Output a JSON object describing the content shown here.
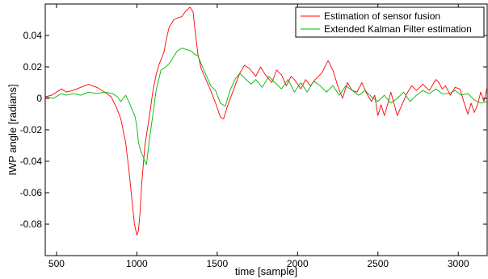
{
  "chart_data": {
    "type": "line",
    "title": "",
    "xlabel": "time [sample]",
    "ylabel": "IWP angle  [radians]",
    "xlim": [
      430,
      3180
    ],
    "ylim": [
      -0.1,
      0.06
    ],
    "xticks": [
      500,
      1000,
      1500,
      2000,
      2500,
      3000
    ],
    "yticks": [
      -0.08,
      -0.06,
      -0.04,
      -0.02,
      0,
      0.02,
      0.04
    ],
    "ytick_labels": [
      "-0.08",
      "-0.06",
      "-0.04",
      "-0.02",
      "0",
      "0.02",
      "0.04"
    ],
    "grid": false,
    "legend_position": "top-right",
    "series": [
      {
        "name": "Estimation of sensor fusion",
        "color": "#ff0000",
        "x": [
          430,
          470,
          530,
          560,
          600,
          650,
          700,
          750,
          800,
          840,
          870,
          900,
          930,
          950,
          970,
          985,
          1000,
          1010,
          1020,
          1030,
          1050,
          1080,
          1100,
          1120,
          1140,
          1160,
          1170,
          1180,
          1200,
          1230,
          1250,
          1280,
          1300,
          1330,
          1350,
          1360,
          1380,
          1400,
          1430,
          1460,
          1490,
          1520,
          1540,
          1560,
          1600,
          1640,
          1670,
          1700,
          1740,
          1770,
          1800,
          1840,
          1870,
          1900,
          1930,
          1960,
          1980,
          2000,
          2020,
          2050,
          2080,
          2110,
          2150,
          2190,
          2220,
          2250,
          2280,
          2310,
          2340,
          2370,
          2400,
          2430,
          2460,
          2480,
          2500,
          2520,
          2540,
          2560,
          2580,
          2600,
          2620,
          2650,
          2680,
          2710,
          2740,
          2780,
          2820,
          2860,
          2880,
          2900,
          2920,
          2950,
          2980,
          3010,
          3040,
          3060,
          3080,
          3100,
          3120,
          3140,
          3160,
          3180
        ],
        "y": [
          0.001,
          0.002,
          0.006,
          0.004,
          0.005,
          0.007,
          0.009,
          0.007,
          0.004,
          0.001,
          -0.005,
          -0.013,
          -0.028,
          -0.045,
          -0.065,
          -0.08,
          -0.087,
          -0.084,
          -0.072,
          -0.055,
          -0.03,
          -0.01,
          0.005,
          0.015,
          0.022,
          0.027,
          0.03,
          0.036,
          0.045,
          0.05,
          0.051,
          0.052,
          0.055,
          0.058,
          0.055,
          0.045,
          0.028,
          0.019,
          0.012,
          0.005,
          -0.003,
          -0.012,
          -0.013,
          -0.006,
          0.005,
          0.016,
          0.021,
          0.019,
          0.014,
          0.02,
          0.015,
          0.01,
          0.018,
          0.015,
          0.008,
          0.014,
          0.012,
          0.009,
          0.006,
          0.012,
          0.008,
          0.012,
          0.016,
          0.024,
          0.018,
          0.008,
          0.0,
          0.01,
          0.005,
          0.004,
          0.01,
          0.003,
          -0.002,
          0.002,
          -0.011,
          -0.004,
          -0.011,
          -0.004,
          0.004,
          -0.003,
          -0.011,
          -0.004,
          0.003,
          0.008,
          0.005,
          0.009,
          0.005,
          0.012,
          0.01,
          0.006,
          0.008,
          0.002,
          0.007,
          0.006,
          -0.004,
          -0.01,
          -0.003,
          -0.009,
          -0.004,
          0.004,
          -0.002,
          0.007
        ]
      },
      {
        "name": "Extended Kalman Filter estimation",
        "color": "#00b400",
        "x": [
          430,
          480,
          530,
          560,
          600,
          650,
          700,
          750,
          800,
          850,
          880,
          900,
          930,
          950,
          970,
          990,
          1000,
          1010,
          1020,
          1030,
          1040,
          1050,
          1060,
          1080,
          1100,
          1120,
          1150,
          1180,
          1200,
          1220,
          1250,
          1280,
          1310,
          1340,
          1360,
          1380,
          1400,
          1430,
          1460,
          1490,
          1520,
          1550,
          1580,
          1610,
          1640,
          1680,
          1710,
          1740,
          1780,
          1820,
          1860,
          1900,
          1940,
          1980,
          2020,
          2060,
          2100,
          2140,
          2180,
          2220,
          2260,
          2300,
          2340,
          2380,
          2420,
          2460,
          2500,
          2540,
          2580,
          2620,
          2660,
          2700,
          2740,
          2780,
          2820,
          2860,
          2900,
          2940,
          2980,
          3020,
          3060,
          3100,
          3140,
          3180
        ],
        "y": [
          0.001,
          0.0,
          0.003,
          0.002,
          0.003,
          0.002,
          0.004,
          0.003,
          0.004,
          0.003,
          0.001,
          -0.002,
          0.002,
          -0.002,
          -0.007,
          -0.012,
          -0.018,
          -0.028,
          -0.032,
          -0.035,
          -0.037,
          -0.04,
          -0.042,
          -0.025,
          -0.01,
          0.005,
          0.018,
          0.02,
          0.022,
          0.025,
          0.03,
          0.032,
          0.031,
          0.03,
          0.028,
          0.027,
          0.022,
          0.015,
          0.008,
          0.005,
          -0.003,
          -0.005,
          0.005,
          0.012,
          0.016,
          0.012,
          0.009,
          0.012,
          0.007,
          0.014,
          0.01,
          0.006,
          0.012,
          0.004,
          0.01,
          0.004,
          0.011,
          0.008,
          0.004,
          0.008,
          0.002,
          0.008,
          0.005,
          0.002,
          0.005,
          0.001,
          -0.002,
          0.002,
          -0.003,
          0.0,
          0.004,
          -0.002,
          0.002,
          0.005,
          0.003,
          0.006,
          0.003,
          0.003,
          0.005,
          0.002,
          0.003,
          -0.001,
          -0.003,
          -0.002
        ]
      }
    ]
  }
}
